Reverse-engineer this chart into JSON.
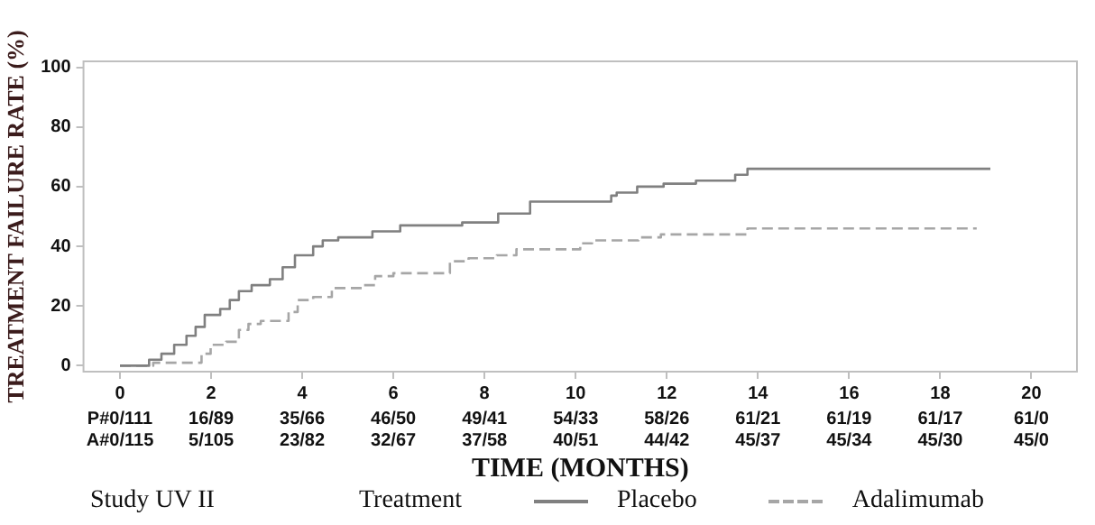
{
  "chart_data": {
    "type": "step",
    "ylabel": "TREATMENT FAILURE RATE (%)",
    "xlabel": "TIME (MONTHS)",
    "legend_title": "Treatment",
    "xlim": [
      -0.8,
      21
    ],
    "xticks": [
      0,
      2,
      4,
      6,
      8,
      10,
      12,
      14,
      16,
      18,
      20
    ],
    "ylim": [
      -2,
      102
    ],
    "yticks": [
      0,
      20,
      40,
      60,
      80,
      100
    ],
    "grid": false,
    "legend": "bottom",
    "series": [
      {
        "name": "Placebo",
        "color": "#808080",
        "line_style": "solid",
        "x": [
          0,
          0.64,
          0.91,
          1.19,
          1.46,
          1.66,
          1.86,
          2.2,
          2.41,
          2.61,
          2.89,
          3.29,
          3.57,
          3.84,
          4.24,
          4.45,
          4.79,
          5.54,
          6.15,
          7.51,
          8.3,
          9.0,
          10.78,
          10.9,
          11.35,
          11.93,
          12.64,
          13.5,
          13.77,
          19.1
        ],
        "values": [
          0,
          2,
          4,
          7,
          10,
          13,
          17,
          19,
          22,
          25,
          27,
          29,
          33,
          37,
          40,
          42,
          43,
          45,
          47,
          48,
          51,
          55,
          57,
          58,
          60,
          61,
          62,
          64,
          66,
          66
        ]
      },
      {
        "name": "Adalimumab",
        "color": "#a6a6a6",
        "line_style": "dashed",
        "x": [
          0,
          0.73,
          1.79,
          1.99,
          2.33,
          2.61,
          2.82,
          3.09,
          3.7,
          3.9,
          4.24,
          4.65,
          5.33,
          5.6,
          6.0,
          7.24,
          7.65,
          8.27,
          8.7,
          10.1,
          10.36,
          11.38,
          11.87,
          13.77,
          18.8
        ],
        "values": [
          0,
          1,
          4,
          7,
          8,
          12,
          14,
          15,
          18,
          22,
          23,
          26,
          27,
          30,
          31,
          35,
          36,
          37,
          39,
          41,
          42,
          43,
          44,
          46,
          46
        ]
      }
    ],
    "annotations": [
      "P#0/111",
      "16/89",
      "35/66",
      "46/50",
      "49/41",
      "54/33",
      "58/26",
      "61/21",
      "61/19",
      "61/17",
      "61/0",
      "A#0/115",
      "5/105",
      "23/82",
      "32/67",
      "37/58",
      "40/51",
      "44/42",
      "45/37",
      "45/34",
      "45/30",
      "45/0",
      "Study UV II"
    ]
  }
}
